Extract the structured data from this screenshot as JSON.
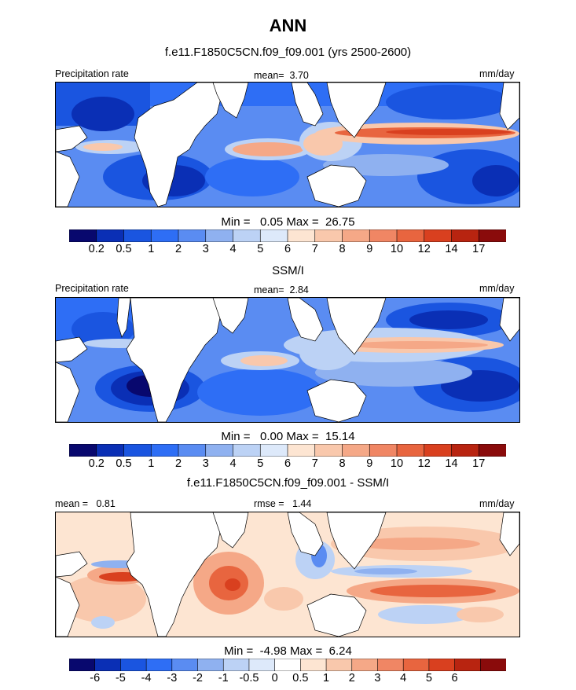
{
  "title": "ANN",
  "colors": {
    "blue_scale": [
      "#08086e",
      "#0a2fb5",
      "#1a55e0",
      "#2e6ef5",
      "#5a8cf2",
      "#8fb1f0",
      "#bcd2f5",
      "#dde9fa"
    ],
    "red_scale": [
      "#fde5d2",
      "#f9c8ac",
      "#f5a887",
      "#f08664",
      "#e8653f",
      "#d9401f",
      "#b82410",
      "#8a0b0b"
    ],
    "diff_scale": [
      "#08086e",
      "#0a2fb5",
      "#1a55e0",
      "#2e6ef5",
      "#5a8cf2",
      "#8fb1f0",
      "#bcd2f5",
      "#dde9fa",
      "#ffffff",
      "#fde5d2",
      "#f9c8ac",
      "#f5a887",
      "#f08664",
      "#e8653f",
      "#d9401f",
      "#b82410",
      "#8a0b0b"
    ]
  },
  "chart_data": [
    {
      "type": "heatmap",
      "title": "f.e11.F1850C5CN.f09_f09.001 (yrs 2500-2600)",
      "variable_label": "Precipitation rate",
      "mean_label": "mean=",
      "mean_value": "3.70",
      "units": "mm/day",
      "min_label": "Min =",
      "min_value": "0.05",
      "max_label": "Max =",
      "max_value": "26.75",
      "colorbar_ticks": [
        "0.2",
        "0.5",
        "1",
        "2",
        "3",
        "4",
        "5",
        "6",
        "7",
        "8",
        "9",
        "10",
        "12",
        "14",
        "17"
      ]
    },
    {
      "type": "heatmap",
      "title": "SSM/I",
      "variable_label": "Precipitation rate",
      "mean_label": "mean=",
      "mean_value": "2.84",
      "units": "mm/day",
      "min_label": "Min =",
      "min_value": "0.00",
      "max_label": "Max =",
      "max_value": "15.14",
      "colorbar_ticks": [
        "0.2",
        "0.5",
        "1",
        "2",
        "3",
        "4",
        "5",
        "6",
        "7",
        "8",
        "9",
        "10",
        "12",
        "14",
        "17"
      ]
    },
    {
      "type": "heatmap",
      "title": "f.e11.F1850C5CN.f09_f09.001 - SSM/I",
      "mean_label": "mean =",
      "mean_value": "0.81",
      "rmse_label": "rmse =",
      "rmse_value": "1.44",
      "units": "mm/day",
      "min_label": "Min =",
      "min_value": "-4.98",
      "max_label": "Max =",
      "max_value": "6.24",
      "colorbar_ticks": [
        "-6",
        "-5",
        "-4",
        "-3",
        "-2",
        "-1",
        "-0.5",
        "0",
        "0.5",
        "1",
        "2",
        "3",
        "4",
        "5",
        "6"
      ]
    }
  ]
}
